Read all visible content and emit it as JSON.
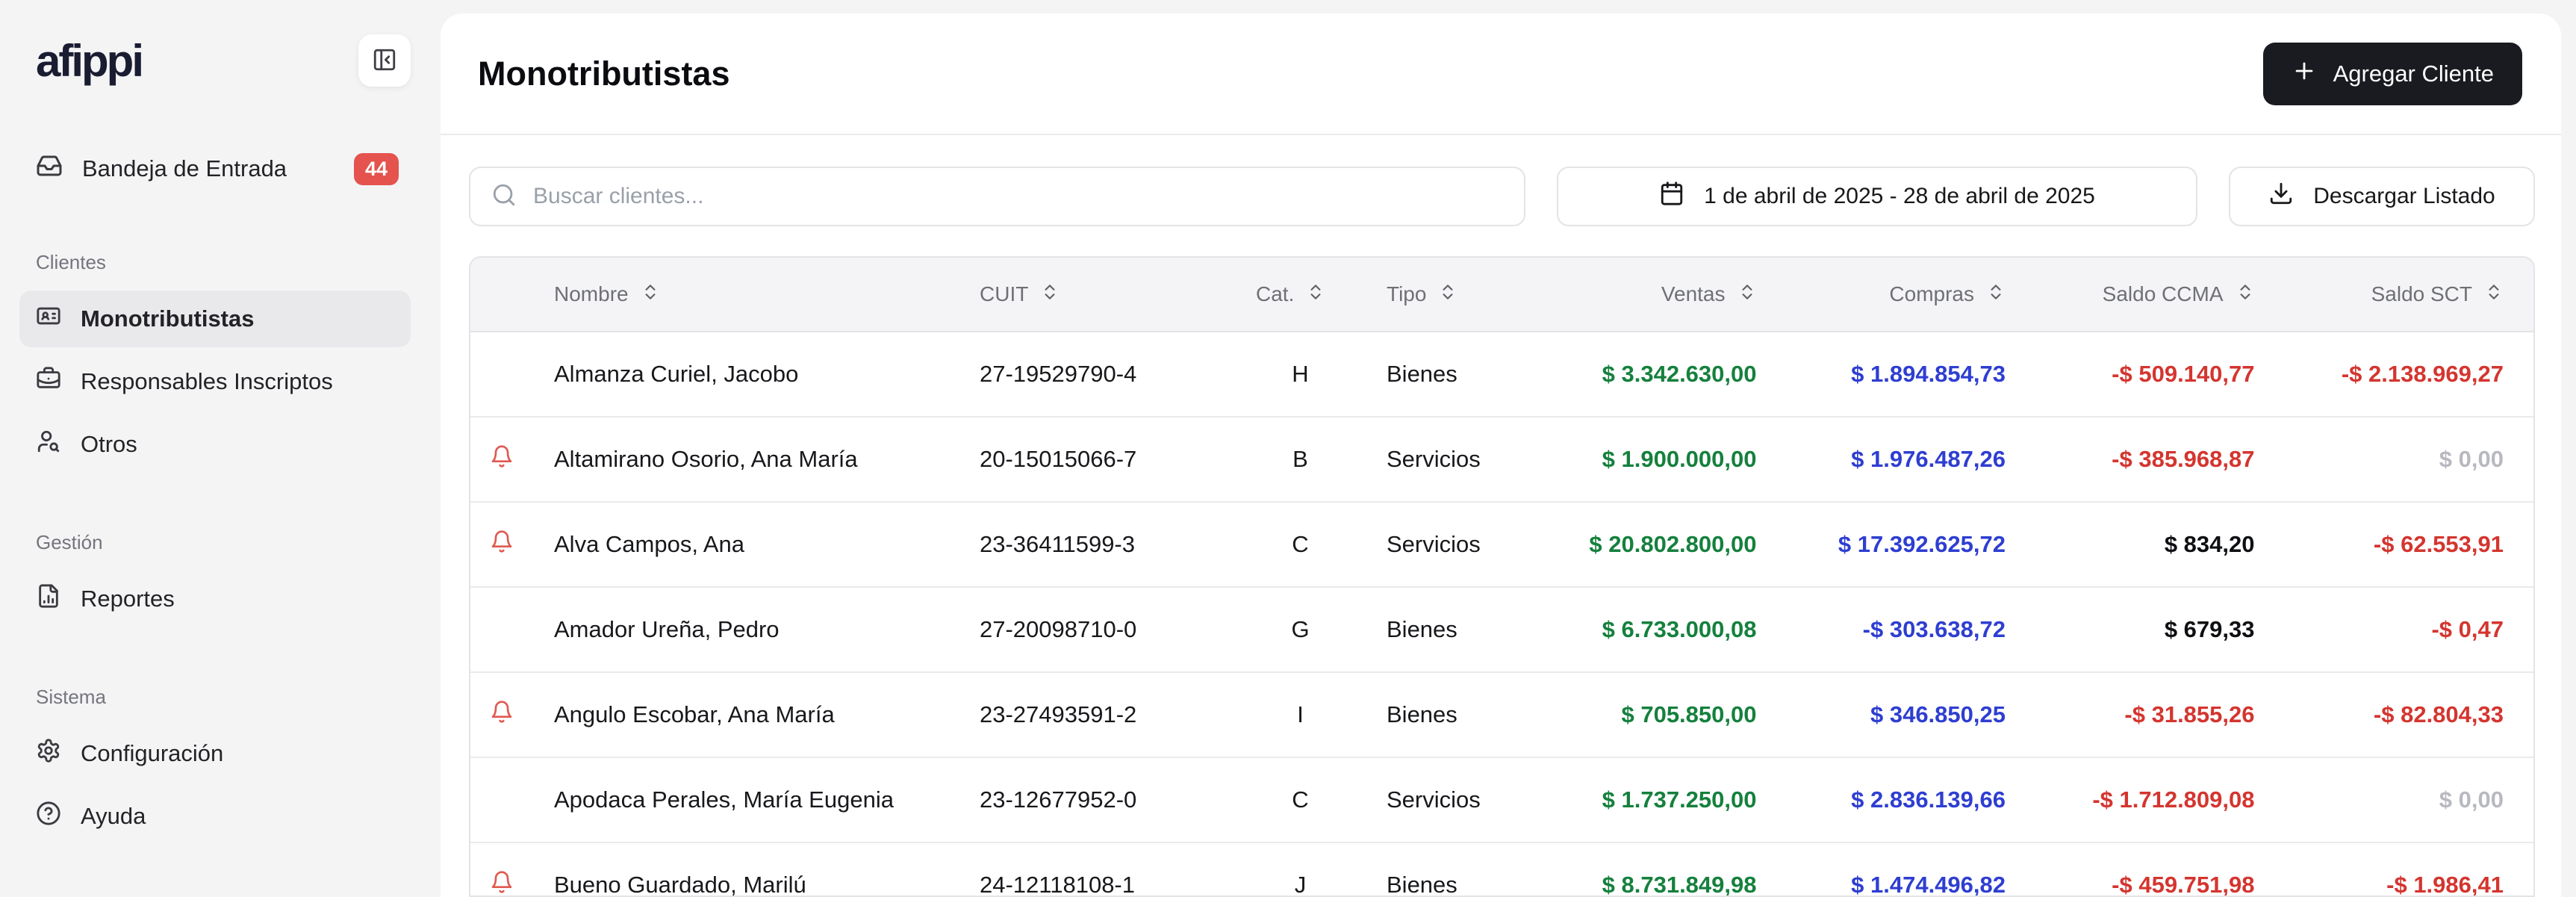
{
  "sidebar": {
    "logo": "afippi",
    "inbox": {
      "label": "Bandeja de Entrada",
      "badge": "44"
    },
    "sections": [
      {
        "label": "Clientes",
        "items": [
          {
            "icon": "id-card-icon",
            "label": "Monotributistas",
            "active": true
          },
          {
            "icon": "briefcase-icon",
            "label": "Responsables Inscriptos",
            "active": false
          },
          {
            "icon": "user-search-icon",
            "label": "Otros",
            "active": false
          }
        ]
      },
      {
        "label": "Gestión",
        "items": [
          {
            "icon": "file-chart-icon",
            "label": "Reportes",
            "active": false
          }
        ]
      },
      {
        "label": "Sistema",
        "items": [
          {
            "icon": "gear-icon",
            "label": "Configuración",
            "active": false
          },
          {
            "icon": "help-icon",
            "label": "Ayuda",
            "active": false
          }
        ]
      }
    ]
  },
  "header": {
    "title": "Monotributistas",
    "add_button": "Agregar Cliente"
  },
  "toolbar": {
    "search_placeholder": "Buscar clientes...",
    "search_value": "",
    "date_range": "1 de abril de 2025 - 28 de abril de 2025",
    "download_label": "Descargar Listado"
  },
  "table": {
    "columns": [
      {
        "label": "Nombre",
        "align": "left"
      },
      {
        "label": "CUIT",
        "align": "left"
      },
      {
        "label": "Cat.",
        "align": "left"
      },
      {
        "label": "Tipo",
        "align": "left"
      },
      {
        "label": "Ventas",
        "align": "right"
      },
      {
        "label": "Compras",
        "align": "right"
      },
      {
        "label": "Saldo CCMA",
        "align": "right"
      },
      {
        "label": "Saldo SCT",
        "align": "right"
      }
    ],
    "rows": [
      {
        "alert": false,
        "nombre": "Almanza Curiel, Jacobo",
        "cuit": "27-19529790-4",
        "cat": "H",
        "tipo": "Bienes",
        "ventas": {
          "text": "$ 3.342.630,00",
          "color": "green"
        },
        "compras": {
          "text": "$ 1.894.854,73",
          "color": "blue"
        },
        "saldo_ccma": {
          "text": "-$ 509.140,77",
          "color": "red"
        },
        "saldo_sct": {
          "text": "-$ 2.138.969,27",
          "color": "red"
        }
      },
      {
        "alert": true,
        "nombre": "Altamirano Osorio, Ana María",
        "cuit": "20-15015066-7",
        "cat": "B",
        "tipo": "Servicios",
        "ventas": {
          "text": "$ 1.900.000,00",
          "color": "green"
        },
        "compras": {
          "text": "$ 1.976.487,26",
          "color": "blue"
        },
        "saldo_ccma": {
          "text": "-$ 385.968,87",
          "color": "red"
        },
        "saldo_sct": {
          "text": "$ 0,00",
          "color": "muted"
        }
      },
      {
        "alert": true,
        "nombre": "Alva Campos, Ana",
        "cuit": "23-36411599-3",
        "cat": "C",
        "tipo": "Servicios",
        "ventas": {
          "text": "$ 20.802.800,00",
          "color": "green"
        },
        "compras": {
          "text": "$ 17.392.625,72",
          "color": "blue"
        },
        "saldo_ccma": {
          "text": "$ 834,20",
          "color": "dark"
        },
        "saldo_sct": {
          "text": "-$ 62.553,91",
          "color": "red"
        }
      },
      {
        "alert": false,
        "nombre": "Amador Ureña, Pedro",
        "cuit": "27-20098710-0",
        "cat": "G",
        "tipo": "Bienes",
        "ventas": {
          "text": "$ 6.733.000,08",
          "color": "green"
        },
        "compras": {
          "text": "-$ 303.638,72",
          "color": "blue"
        },
        "saldo_ccma": {
          "text": "$ 679,33",
          "color": "dark"
        },
        "saldo_sct": {
          "text": "-$ 0,47",
          "color": "red"
        }
      },
      {
        "alert": true,
        "nombre": "Angulo Escobar, Ana María",
        "cuit": "23-27493591-2",
        "cat": "I",
        "tipo": "Bienes",
        "ventas": {
          "text": "$ 705.850,00",
          "color": "green"
        },
        "compras": {
          "text": "$ 346.850,25",
          "color": "blue"
        },
        "saldo_ccma": {
          "text": "-$ 31.855,26",
          "color": "red"
        },
        "saldo_sct": {
          "text": "-$ 82.804,33",
          "color": "red"
        }
      },
      {
        "alert": false,
        "nombre": "Apodaca Perales, María Eugenia",
        "cuit": "23-12677952-0",
        "cat": "C",
        "tipo": "Servicios",
        "ventas": {
          "text": "$ 1.737.250,00",
          "color": "green"
        },
        "compras": {
          "text": "$ 2.836.139,66",
          "color": "blue"
        },
        "saldo_ccma": {
          "text": "-$ 1.712.809,08",
          "color": "red"
        },
        "saldo_sct": {
          "text": "$ 0,00",
          "color": "muted"
        }
      },
      {
        "alert": true,
        "nombre": "Bueno Guardado, Marilú",
        "cuit": "24-12118108-1",
        "cat": "J",
        "tipo": "Bienes",
        "ventas": {
          "text": "$ 8.731.849,98",
          "color": "green"
        },
        "compras": {
          "text": "$ 1.474.496,82",
          "color": "blue"
        },
        "saldo_ccma": {
          "text": "-$ 459.751,98",
          "color": "red"
        },
        "saldo_sct": {
          "text": "-$ 1.986,41",
          "color": "red"
        }
      }
    ]
  },
  "colors": {
    "ventas_green": "#15803d",
    "compras_blue": "#2e3ed1",
    "negative_red": "#d4352f",
    "zero_muted": "#b7b9bf",
    "badge_red": "#e4534e",
    "bell_red": "#df5a52",
    "button_black": "#1a1b20"
  }
}
